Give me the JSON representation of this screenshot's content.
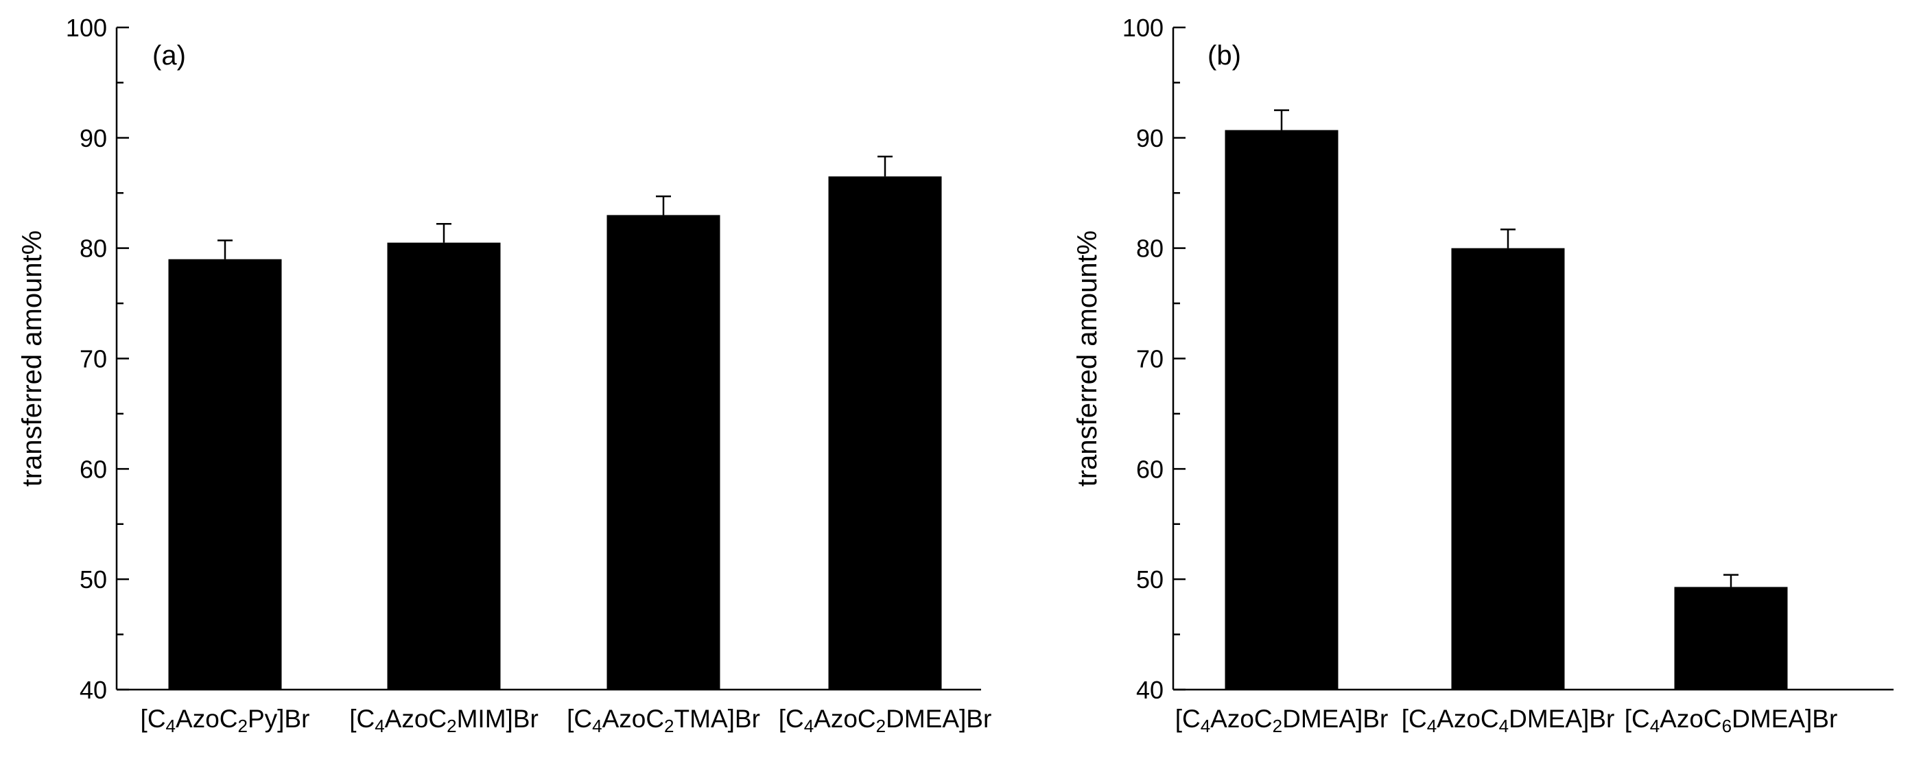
{
  "chart_data": [
    {
      "type": "bar",
      "panel_label": "(a)",
      "ylabel": "transferred amount%",
      "xlabel": "",
      "ylim": [
        40,
        100
      ],
      "yticks": [
        40,
        50,
        60,
        70,
        80,
        90,
        100
      ],
      "categories": [
        {
          "pre": "[C",
          "sub1": "4",
          "mid": "AzoC",
          "sub2": "2",
          "post": "Py]Br"
        },
        {
          "pre": "[C",
          "sub1": "4",
          "mid": "AzoC",
          "sub2": "2",
          "post": "MIM]Br"
        },
        {
          "pre": "[C",
          "sub1": "4",
          "mid": "AzoC",
          "sub2": "2",
          "post": "TMA]Br"
        },
        {
          "pre": "[C",
          "sub1": "4",
          "mid": "AzoC",
          "sub2": "2",
          "post": "DMEA]Br"
        }
      ],
      "values": [
        79.0,
        80.5,
        83.0,
        86.5
      ],
      "errors": [
        1.7,
        1.7,
        1.7,
        1.8
      ]
    },
    {
      "type": "bar",
      "panel_label": "(b)",
      "ylabel": "transferred amount%",
      "xlabel": "",
      "ylim": [
        40,
        100
      ],
      "yticks": [
        40,
        50,
        60,
        70,
        80,
        90,
        100
      ],
      "categories": [
        {
          "pre": "[C",
          "sub1": "4",
          "mid": "AzoC",
          "sub2": "2",
          "post": "DMEA]Br"
        },
        {
          "pre": "[C",
          "sub1": "4",
          "mid": "AzoC",
          "sub2": "4",
          "post": "DMEA]Br"
        },
        {
          "pre": "[C",
          "sub1": "4",
          "mid": "AzoC",
          "sub2": "6",
          "post": "DMEA]Br"
        }
      ],
      "values": [
        90.7,
        80.0,
        49.3
      ],
      "errors": [
        1.8,
        1.7,
        1.1
      ]
    }
  ]
}
